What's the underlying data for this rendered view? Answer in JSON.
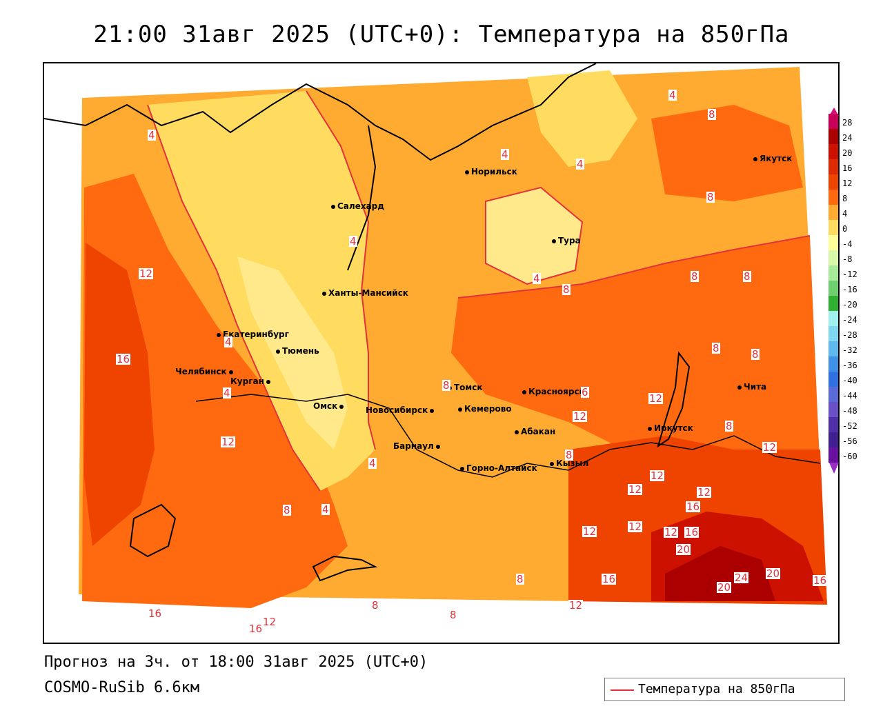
{
  "title": "21:00 31авг 2025 (UTC+0): Температура на 850гПа",
  "footer": {
    "forecast": "Прогноз на 3ч. от 18:00 31авг 2025 (UTC+0)",
    "model": "COSMO-RuSib 6.6км"
  },
  "legend": {
    "label": "Температура на 850гПа",
    "line_color": "#e3323a"
  },
  "colorbar": {
    "values": [
      "28",
      "24",
      "20",
      "16",
      "12",
      "8",
      "4",
      "0",
      "-4",
      "-8",
      "-12",
      "-16",
      "-20",
      "-24",
      "-28",
      "-32",
      "-36",
      "-40",
      "-44",
      "-48",
      "-52",
      "-56",
      "-60"
    ],
    "colors": [
      "#c8005a",
      "#aa0000",
      "#cc1100",
      "#dd2a00",
      "#ee4400",
      "#ff6a10",
      "#ffaa30",
      "#ffdc60",
      "#ffff9a",
      "#d8f7a8",
      "#a6ea9a",
      "#70d070",
      "#30b030",
      "#a0f0f0",
      "#80d8f0",
      "#60b8f0",
      "#4090e8",
      "#3070e0",
      "#5a6ad8",
      "#6a50c8",
      "#5030a8",
      "#402090",
      "#6a10a0"
    ]
  },
  "cities": [
    {
      "name": "Норильск"
    },
    {
      "name": "Якутск"
    },
    {
      "name": "Салехард"
    },
    {
      "name": "Тура"
    },
    {
      "name": "Ханты-Мансийск"
    },
    {
      "name": "Екатеринбург"
    },
    {
      "name": "Тюмень"
    },
    {
      "name": "Челябинск"
    },
    {
      "name": "Курган"
    },
    {
      "name": "Томск"
    },
    {
      "name": "Красноярск"
    },
    {
      "name": "Омск"
    },
    {
      "name": "Новосибирск"
    },
    {
      "name": "Кемерово"
    },
    {
      "name": "Абакан"
    },
    {
      "name": "Иркутск"
    },
    {
      "name": "Чита"
    },
    {
      "name": "Барнаул"
    },
    {
      "name": "Горно-Алтайск"
    },
    {
      "name": "Кызыл"
    }
  ],
  "contour_labels": [
    "4",
    "8",
    "4",
    "4",
    "4",
    "4",
    "8",
    "4",
    "8",
    "8",
    "12",
    "8",
    "16",
    "4",
    "4",
    "8",
    "8",
    "8",
    "6",
    "12",
    "12",
    "8",
    "12",
    "8",
    "12",
    "12",
    "12",
    "12",
    "16",
    "12",
    "8",
    "4",
    "4",
    "16",
    "12",
    "12",
    "16",
    "20",
    "20",
    "24",
    "20",
    "16",
    "16",
    "12",
    "8",
    "8",
    "8",
    "12",
    "16"
  ]
}
